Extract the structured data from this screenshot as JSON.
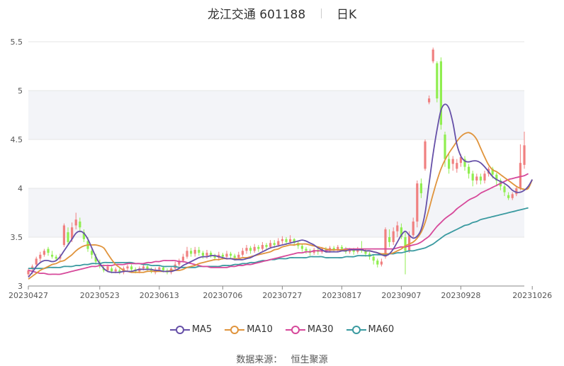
{
  "header": {
    "name": "龙江交通 601188",
    "period": "日K"
  },
  "source": {
    "label": "数据来源：",
    "value": "恒生聚源"
  },
  "chart_data": {
    "type": "candlestick",
    "y_ticks": [
      "3",
      "3.5",
      "4",
      "4.5",
      "5",
      "5.5"
    ],
    "ylim": [
      3.0,
      5.5
    ],
    "x_tick_labels": [
      "20230427",
      "20230523",
      "20230613",
      "20230706",
      "20230727",
      "20230817",
      "20230907",
      "20230928",
      "20231026"
    ],
    "x_tick_index": [
      0,
      18,
      33,
      49,
      64,
      79,
      94,
      109,
      127
    ],
    "colors": {
      "up": "#f08080",
      "down": "#90ee50",
      "grid": "#e6e6e6",
      "band": "#f3f4f8"
    },
    "legend": [
      {
        "name": "MA5",
        "color": "#6650a8"
      },
      {
        "name": "MA10",
        "color": "#e0943c"
      },
      {
        "name": "MA30",
        "color": "#d6489a"
      },
      {
        "name": "MA60",
        "color": "#3a9aa0"
      }
    ],
    "series": [
      {
        "name": "MA5",
        "values": [
          3.09,
          3.14,
          3.2,
          3.24,
          3.26,
          3.26,
          3.25,
          3.26,
          3.3,
          3.36,
          3.42,
          3.48,
          3.54,
          3.56,
          3.54,
          3.48,
          3.39,
          3.3,
          3.23,
          3.18,
          3.15,
          3.14,
          3.14,
          3.14,
          3.15,
          3.15,
          3.15,
          3.16,
          3.17,
          3.17,
          3.17,
          3.17,
          3.16,
          3.16,
          3.15,
          3.15,
          3.15,
          3.16,
          3.18,
          3.21,
          3.23,
          3.25,
          3.27,
          3.29,
          3.3,
          3.3,
          3.31,
          3.31,
          3.3,
          3.29,
          3.28,
          3.28,
          3.27,
          3.27,
          3.27,
          3.28,
          3.29,
          3.31,
          3.33,
          3.35,
          3.37,
          3.39,
          3.4,
          3.41,
          3.42,
          3.43,
          3.44,
          3.45,
          3.46,
          3.47,
          3.46,
          3.44,
          3.42,
          3.39,
          3.37,
          3.35,
          3.35,
          3.35,
          3.35,
          3.36,
          3.36,
          3.37,
          3.37,
          3.37,
          3.37,
          3.36,
          3.36,
          3.35,
          3.34,
          3.32,
          3.31,
          3.33,
          3.38,
          3.45,
          3.52,
          3.56,
          3.52,
          3.49,
          3.51,
          3.58,
          3.75,
          4.05,
          4.35,
          4.6,
          4.8,
          4.86,
          4.82,
          4.67,
          4.45,
          4.33,
          4.28,
          4.27,
          4.28,
          4.28,
          4.26,
          4.22,
          4.17,
          4.12,
          4.09,
          4.07,
          4.05,
          4.02,
          3.98,
          3.96,
          3.96,
          3.98,
          4.02,
          4.09
        ]
      },
      {
        "name": "MA10",
        "values": [
          3.07,
          3.1,
          3.13,
          3.16,
          3.18,
          3.2,
          3.22,
          3.23,
          3.25,
          3.26,
          3.29,
          3.32,
          3.36,
          3.39,
          3.41,
          3.42,
          3.42,
          3.42,
          3.41,
          3.39,
          3.33,
          3.27,
          3.22,
          3.19,
          3.16,
          3.15,
          3.14,
          3.14,
          3.14,
          3.14,
          3.15,
          3.15,
          3.15,
          3.15,
          3.15,
          3.15,
          3.16,
          3.16,
          3.16,
          3.17,
          3.19,
          3.2,
          3.21,
          3.23,
          3.24,
          3.25,
          3.26,
          3.27,
          3.27,
          3.28,
          3.28,
          3.28,
          3.28,
          3.28,
          3.29,
          3.29,
          3.3,
          3.31,
          3.32,
          3.33,
          3.34,
          3.35,
          3.37,
          3.38,
          3.4,
          3.41,
          3.42,
          3.42,
          3.43,
          3.43,
          3.43,
          3.42,
          3.41,
          3.4,
          3.39,
          3.38,
          3.37,
          3.37,
          3.37,
          3.37,
          3.37,
          3.37,
          3.37,
          3.37,
          3.37,
          3.36,
          3.36,
          3.35,
          3.34,
          3.33,
          3.33,
          3.33,
          3.34,
          3.36,
          3.38,
          3.41,
          3.43,
          3.45,
          3.49,
          3.55,
          3.65,
          3.79,
          3.94,
          4.08,
          4.2,
          4.29,
          4.36,
          4.42,
          4.48,
          4.53,
          4.56,
          4.57,
          4.55,
          4.5,
          4.41,
          4.32,
          4.24,
          4.19,
          4.17,
          4.14,
          4.11,
          4.08,
          4.05,
          4.02,
          4.0,
          3.99,
          4.0,
          4.09
        ]
      },
      {
        "name": "MA30",
        "values": [
          3.16,
          3.15,
          3.14,
          3.13,
          3.13,
          3.12,
          3.12,
          3.12,
          3.12,
          3.13,
          3.14,
          3.15,
          3.16,
          3.17,
          3.18,
          3.19,
          3.2,
          3.2,
          3.21,
          3.21,
          3.21,
          3.21,
          3.22,
          3.22,
          3.22,
          3.23,
          3.23,
          3.23,
          3.23,
          3.23,
          3.24,
          3.24,
          3.25,
          3.25,
          3.26,
          3.26,
          3.26,
          3.26,
          3.25,
          3.25,
          3.24,
          3.23,
          3.22,
          3.21,
          3.2,
          3.2,
          3.19,
          3.19,
          3.19,
          3.19,
          3.19,
          3.2,
          3.2,
          3.21,
          3.21,
          3.22,
          3.22,
          3.23,
          3.24,
          3.25,
          3.26,
          3.27,
          3.28,
          3.29,
          3.3,
          3.31,
          3.32,
          3.33,
          3.34,
          3.34,
          3.35,
          3.35,
          3.36,
          3.36,
          3.36,
          3.36,
          3.37,
          3.37,
          3.37,
          3.37,
          3.38,
          3.38,
          3.38,
          3.38,
          3.38,
          3.38,
          3.38,
          3.38,
          3.38,
          3.38,
          3.38,
          3.38,
          3.38,
          3.39,
          3.4,
          3.4,
          3.41,
          3.42,
          3.43,
          3.45,
          3.48,
          3.51,
          3.56,
          3.61,
          3.65,
          3.69,
          3.72,
          3.75,
          3.79,
          3.82,
          3.85,
          3.88,
          3.9,
          3.92,
          3.95,
          3.97,
          3.99,
          4.01,
          4.03,
          4.05,
          4.07,
          4.09,
          4.1,
          4.11,
          4.12,
          4.13,
          4.15
        ]
      },
      {
        "name": "MA60",
        "values": [
          3.18,
          3.18,
          3.18,
          3.18,
          3.18,
          3.19,
          3.19,
          3.19,
          3.19,
          3.2,
          3.2,
          3.2,
          3.21,
          3.21,
          3.22,
          3.22,
          3.23,
          3.23,
          3.23,
          3.24,
          3.24,
          3.24,
          3.24,
          3.24,
          3.24,
          3.24,
          3.24,
          3.23,
          3.23,
          3.22,
          3.22,
          3.21,
          3.21,
          3.21,
          3.2,
          3.2,
          3.2,
          3.2,
          3.19,
          3.19,
          3.19,
          3.19,
          3.19,
          3.2,
          3.2,
          3.2,
          3.2,
          3.2,
          3.2,
          3.21,
          3.21,
          3.21,
          3.22,
          3.22,
          3.23,
          3.23,
          3.24,
          3.24,
          3.25,
          3.26,
          3.26,
          3.27,
          3.27,
          3.28,
          3.28,
          3.28,
          3.29,
          3.29,
          3.29,
          3.29,
          3.29,
          3.3,
          3.3,
          3.3,
          3.3,
          3.29,
          3.29,
          3.29,
          3.29,
          3.29,
          3.3,
          3.3,
          3.3,
          3.31,
          3.31,
          3.31,
          3.31,
          3.32,
          3.32,
          3.32,
          3.32,
          3.33,
          3.33,
          3.34,
          3.34,
          3.35,
          3.36,
          3.36,
          3.37,
          3.38,
          3.39,
          3.41,
          3.43,
          3.46,
          3.49,
          3.52,
          3.54,
          3.56,
          3.58,
          3.6,
          3.62,
          3.63,
          3.65,
          3.66,
          3.68,
          3.69,
          3.7,
          3.71,
          3.72,
          3.73,
          3.74,
          3.75,
          3.76,
          3.77,
          3.78,
          3.79,
          3.8
        ]
      }
    ],
    "candles": [
      [
        3.12,
        3.16,
        3.18,
        3.1
      ],
      [
        3.18,
        3.2,
        3.22,
        3.12
      ],
      [
        3.22,
        3.28,
        3.3,
        3.2
      ],
      [
        3.28,
        3.32,
        3.35,
        3.25
      ],
      [
        3.32,
        3.36,
        3.38,
        3.3
      ],
      [
        3.38,
        3.34,
        3.4,
        3.31
      ],
      [
        3.32,
        3.3,
        3.36,
        3.28
      ],
      [
        3.3,
        3.28,
        3.32,
        3.26
      ],
      [
        3.28,
        3.3,
        3.33,
        3.26
      ],
      [
        3.42,
        3.62,
        3.64,
        3.4
      ],
      [
        3.55,
        3.45,
        3.6,
        3.42
      ],
      [
        3.48,
        3.6,
        3.65,
        3.45
      ],
      [
        3.62,
        3.68,
        3.75,
        3.58
      ],
      [
        3.66,
        3.6,
        3.7,
        3.55
      ],
      [
        3.55,
        3.48,
        3.58,
        3.45
      ],
      [
        3.46,
        3.38,
        3.5,
        3.35
      ],
      [
        3.36,
        3.32,
        3.4,
        3.28
      ],
      [
        3.3,
        3.25,
        3.33,
        3.22
      ],
      [
        3.24,
        3.2,
        3.27,
        3.18
      ],
      [
        3.18,
        3.16,
        3.22,
        3.14
      ],
      [
        3.16,
        3.2,
        3.22,
        3.14
      ],
      [
        3.18,
        3.15,
        3.2,
        3.13
      ],
      [
        3.15,
        3.17,
        3.19,
        3.13
      ],
      [
        3.16,
        3.14,
        3.18,
        3.12
      ],
      [
        3.14,
        3.18,
        3.2,
        3.12
      ],
      [
        3.18,
        3.2,
        3.22,
        3.15
      ],
      [
        3.2,
        3.17,
        3.22,
        3.15
      ],
      [
        3.17,
        3.15,
        3.19,
        3.13
      ],
      [
        3.15,
        3.18,
        3.2,
        3.13
      ],
      [
        3.18,
        3.2,
        3.23,
        3.16
      ],
      [
        3.2,
        3.17,
        3.22,
        3.15
      ],
      [
        3.17,
        3.15,
        3.19,
        3.13
      ],
      [
        3.14,
        3.17,
        3.19,
        3.12
      ],
      [
        3.17,
        3.19,
        3.21,
        3.15
      ],
      [
        3.19,
        3.16,
        3.2,
        3.14
      ],
      [
        3.16,
        3.14,
        3.18,
        3.12
      ],
      [
        3.14,
        3.18,
        3.2,
        3.12
      ],
      [
        3.18,
        3.22,
        3.25,
        3.16
      ],
      [
        3.22,
        3.26,
        3.28,
        3.2
      ],
      [
        3.26,
        3.3,
        3.33,
        3.24
      ],
      [
        3.3,
        3.36,
        3.4,
        3.28
      ],
      [
        3.36,
        3.33,
        3.39,
        3.3
      ],
      [
        3.33,
        3.37,
        3.4,
        3.3
      ],
      [
        3.37,
        3.34,
        3.4,
        3.31
      ],
      [
        3.34,
        3.31,
        3.36,
        3.28
      ],
      [
        3.31,
        3.34,
        3.37,
        3.28
      ],
      [
        3.34,
        3.31,
        3.36,
        3.29
      ],
      [
        3.31,
        3.29,
        3.33,
        3.26
      ],
      [
        3.29,
        3.32,
        3.35,
        3.26
      ],
      [
        3.32,
        3.3,
        3.34,
        3.27
      ],
      [
        3.3,
        3.33,
        3.36,
        3.27
      ],
      [
        3.33,
        3.31,
        3.35,
        3.28
      ],
      [
        3.31,
        3.29,
        3.33,
        3.26
      ],
      [
        3.29,
        3.32,
        3.35,
        3.27
      ],
      [
        3.32,
        3.36,
        3.39,
        3.3
      ],
      [
        3.36,
        3.39,
        3.42,
        3.33
      ],
      [
        3.39,
        3.36,
        3.41,
        3.33
      ],
      [
        3.36,
        3.4,
        3.43,
        3.34
      ],
      [
        3.4,
        3.38,
        3.42,
        3.35
      ],
      [
        3.38,
        3.42,
        3.45,
        3.36
      ],
      [
        3.42,
        3.4,
        3.44,
        3.37
      ],
      [
        3.4,
        3.44,
        3.47,
        3.38
      ],
      [
        3.44,
        3.42,
        3.47,
        3.39
      ],
      [
        3.42,
        3.46,
        3.49,
        3.4
      ],
      [
        3.46,
        3.48,
        3.51,
        3.43
      ],
      [
        3.48,
        3.45,
        3.5,
        3.42
      ],
      [
        3.45,
        3.48,
        3.52,
        3.43
      ],
      [
        3.48,
        3.44,
        3.49,
        3.41
      ],
      [
        3.44,
        3.41,
        3.46,
        3.38
      ],
      [
        3.41,
        3.38,
        3.43,
        3.35
      ],
      [
        3.38,
        3.36,
        3.4,
        3.33
      ],
      [
        3.36,
        3.34,
        3.38,
        3.31
      ],
      [
        3.34,
        3.37,
        3.39,
        3.32
      ],
      [
        3.37,
        3.35,
        3.39,
        3.32
      ],
      [
        3.35,
        3.38,
        3.4,
        3.33
      ],
      [
        3.38,
        3.36,
        3.4,
        3.34
      ],
      [
        3.36,
        3.39,
        3.41,
        3.34
      ],
      [
        3.39,
        3.37,
        3.41,
        3.35
      ],
      [
        3.37,
        3.4,
        3.42,
        3.35
      ],
      [
        3.4,
        3.38,
        3.42,
        3.36
      ],
      [
        3.38,
        3.35,
        3.4,
        3.33
      ],
      [
        3.35,
        3.37,
        3.39,
        3.33
      ],
      [
        3.37,
        3.35,
        3.39,
        3.32
      ],
      [
        3.35,
        3.38,
        3.4,
        3.33
      ],
      [
        3.38,
        3.36,
        3.46,
        3.34
      ],
      [
        3.36,
        3.33,
        3.38,
        3.3
      ],
      [
        3.33,
        3.3,
        3.35,
        3.27
      ],
      [
        3.3,
        3.26,
        3.32,
        3.22
      ],
      [
        3.26,
        3.22,
        3.28,
        3.19
      ],
      [
        3.22,
        3.25,
        3.28,
        3.2
      ],
      [
        3.3,
        3.58,
        3.6,
        3.28
      ],
      [
        3.5,
        3.45,
        3.58,
        3.4
      ],
      [
        3.45,
        3.56,
        3.6,
        3.42
      ],
      [
        3.56,
        3.62,
        3.66,
        3.5
      ],
      [
        3.6,
        3.5,
        3.64,
        3.48
      ],
      [
        3.5,
        3.36,
        3.55,
        3.12
      ],
      [
        3.36,
        3.52,
        3.56,
        3.34
      ],
      [
        3.52,
        3.66,
        3.7,
        3.5
      ],
      [
        3.66,
        4.05,
        4.08,
        3.6
      ],
      [
        4.05,
        3.95,
        4.1,
        3.9
      ],
      [
        4.2,
        4.48,
        4.5,
        4.18
      ],
      [
        4.88,
        4.92,
        4.95,
        4.86
      ],
      [
        5.3,
        5.42,
        5.44,
        5.28
      ],
      [
        5.28,
        4.92,
        5.3,
        4.88
      ],
      [
        5.3,
        4.65,
        5.34,
        4.6
      ],
      [
        4.55,
        4.3,
        4.58,
        4.22
      ],
      [
        4.3,
        4.2,
        4.35,
        4.15
      ],
      [
        4.25,
        4.3,
        4.33,
        4.18
      ],
      [
        4.2,
        4.26,
        4.3,
        4.16
      ],
      [
        4.26,
        4.32,
        4.35,
        4.22
      ],
      [
        4.3,
        4.22,
        4.33,
        4.18
      ],
      [
        4.22,
        4.15,
        4.25,
        4.1
      ],
      [
        4.15,
        4.08,
        4.18,
        4.02
      ],
      [
        4.08,
        4.12,
        4.15,
        4.04
      ],
      [
        4.12,
        4.08,
        4.15,
        4.04
      ],
      [
        4.08,
        4.15,
        4.18,
        4.05
      ],
      [
        4.15,
        4.2,
        4.22,
        4.12
      ],
      [
        4.2,
        4.14,
        4.22,
        4.1
      ],
      [
        4.14,
        4.08,
        4.16,
        4.02
      ],
      [
        4.08,
        4.02,
        4.1,
        3.98
      ],
      [
        4.02,
        3.96,
        4.04,
        3.92
      ],
      [
        3.93,
        3.9,
        3.96,
        3.88
      ],
      [
        3.9,
        3.94,
        3.96,
        3.88
      ],
      [
        3.94,
        4.0,
        4.02,
        3.92
      ],
      [
        4.0,
        4.26,
        4.45,
        3.98
      ],
      [
        4.24,
        4.44,
        4.58,
        4.2
      ]
    ]
  }
}
